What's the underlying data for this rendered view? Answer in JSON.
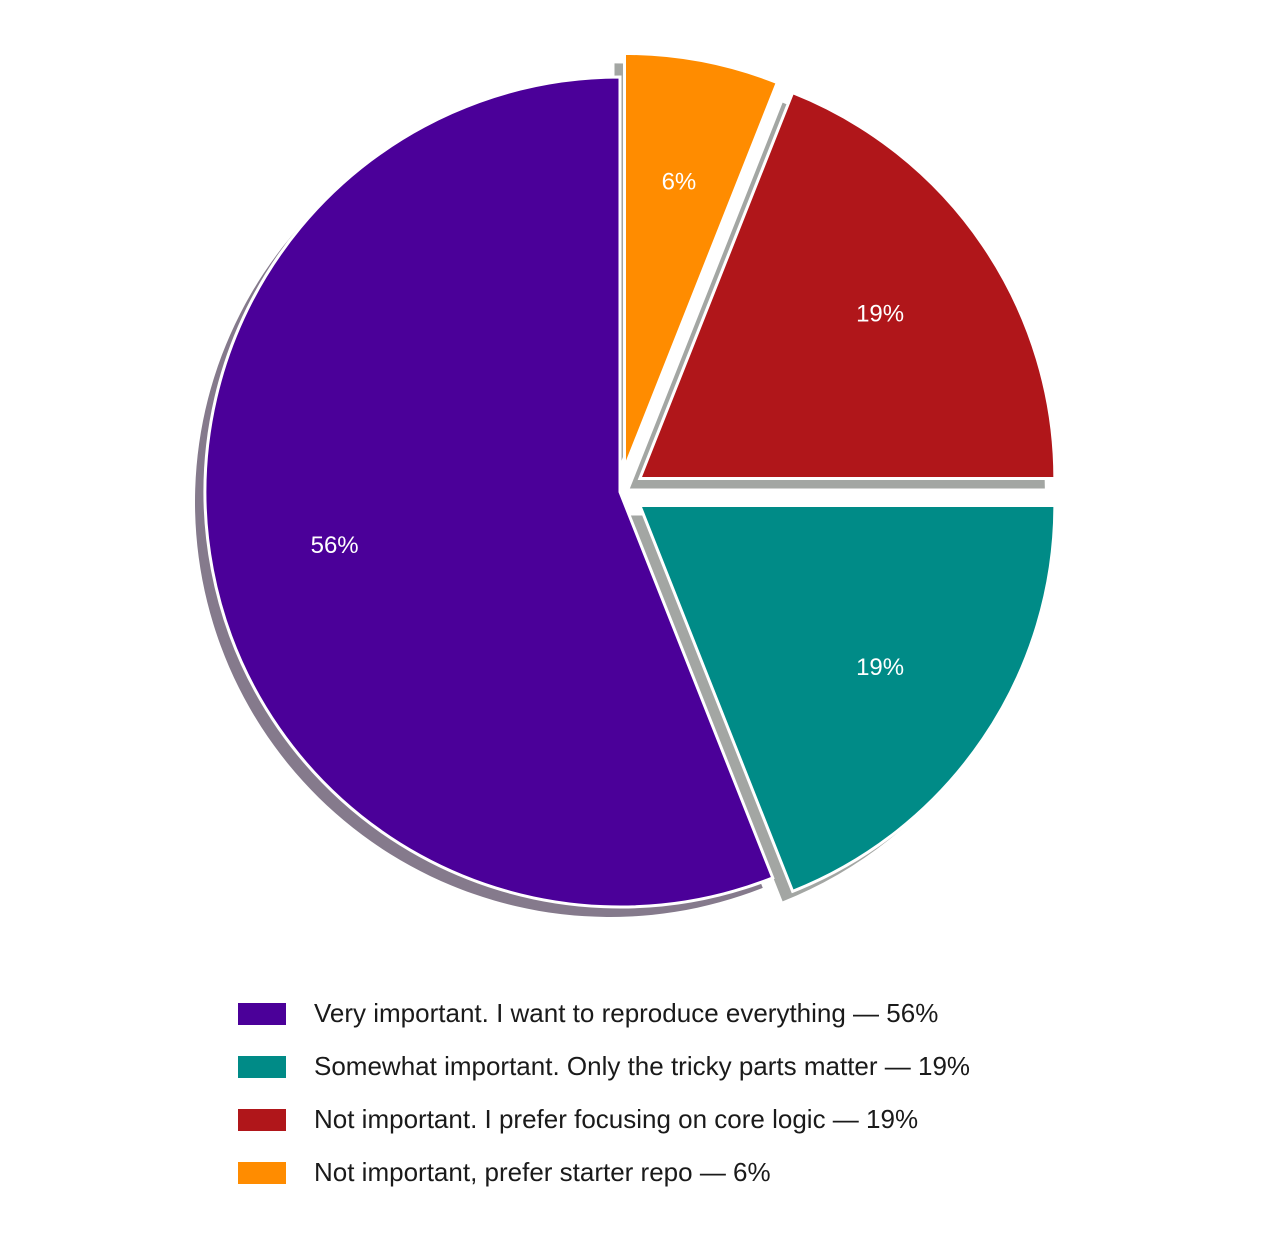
{
  "chart_data": {
    "type": "pie",
    "categories": [
      "Very important. I want to reproduce everything — 56%",
      "Somewhat important. Only the tricky parts matter — 19%",
      "Not important. I prefer focusing on core logic — 19%",
      "Not important, prefer starter repo — 6%"
    ],
    "values": [
      56,
      19,
      19,
      6
    ],
    "value_labels": [
      "56%",
      "19%",
      "19%",
      "6%"
    ],
    "colors": [
      "#4b0099",
      "#008b87",
      "#b0161a",
      "#ff8c00"
    ],
    "legend": "bottom"
  }
}
